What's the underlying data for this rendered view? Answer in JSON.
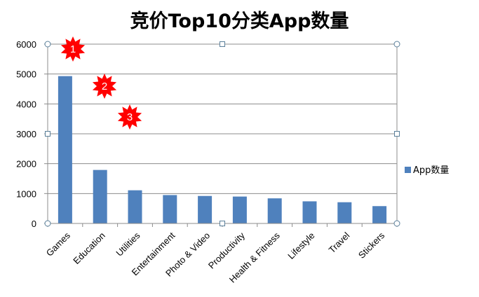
{
  "chart_data": {
    "type": "bar",
    "title": "竞价Top10分类App数量",
    "categories": [
      "Games",
      "Education",
      "Utilities",
      "Entertainment",
      "Photo & Video",
      "Productivity",
      "Health & Fitness",
      "Lifestyle",
      "Travel",
      "Stickers"
    ],
    "series": [
      {
        "name": "App数量",
        "values": [
          4930,
          1790,
          1110,
          950,
          920,
          900,
          840,
          740,
          710,
          580
        ],
        "color": "#4f81bd"
      }
    ],
    "ylim": [
      0,
      6000
    ],
    "yticks": [
      0,
      1000,
      2000,
      3000,
      4000,
      5000,
      6000
    ],
    "grid": true,
    "legend": "right",
    "annotations": [
      {
        "label": "1",
        "shape": "red-star-badge",
        "color": "#ff0000"
      },
      {
        "label": "2",
        "shape": "red-star-badge",
        "color": "#ff0000"
      },
      {
        "label": "3",
        "shape": "red-star-badge",
        "color": "#ff0000"
      }
    ]
  }
}
